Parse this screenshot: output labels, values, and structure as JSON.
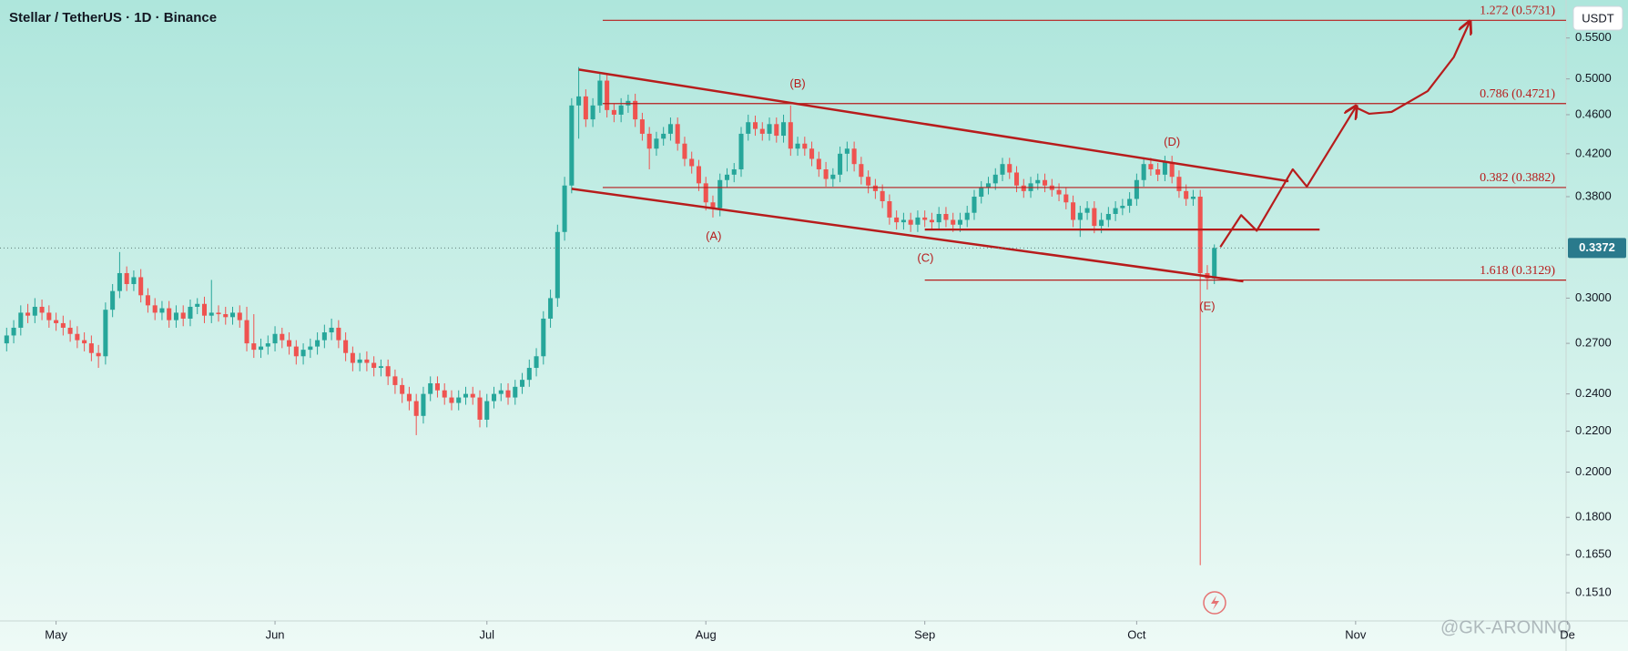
{
  "chart_data": {
    "type": "candlestick",
    "title": "Stellar / TetherUS · 1D · Binance",
    "currency": "USDT",
    "watermark": "@GK-ARONNO",
    "up_color": "#26a69a",
    "down_color": "#ef5350",
    "line_color": "#b71c1c",
    "log_scale": true,
    "xlim": [
      -0.94,
      220.8
    ],
    "xticks": [
      {
        "value": 7,
        "label": "May"
      },
      {
        "value": 38,
        "label": "Jun"
      },
      {
        "value": 68,
        "label": "Jul"
      },
      {
        "value": 99,
        "label": "Aug"
      },
      {
        "value": 130,
        "label": "Sep"
      },
      {
        "value": 160,
        "label": "Oct"
      },
      {
        "value": 191,
        "label": "Nov"
      },
      {
        "value": 221,
        "label": "De"
      }
    ],
    "ylim": [
      0.1414,
      0.6009
    ],
    "yticks": [
      {
        "value": 0.151,
        "label": "0.1510"
      },
      {
        "value": 0.165,
        "label": "0.1650"
      },
      {
        "value": 0.18,
        "label": "0.1800"
      },
      {
        "value": 0.2,
        "label": "0.2000"
      },
      {
        "value": 0.22,
        "label": "0.2200"
      },
      {
        "value": 0.24,
        "label": "0.2400"
      },
      {
        "value": 0.27,
        "label": "0.2700"
      },
      {
        "value": 0.3,
        "label": "0.3000"
      },
      {
        "value": 0.38,
        "label": "0.3800"
      },
      {
        "value": 0.42,
        "label": "0.4200"
      },
      {
        "value": 0.46,
        "label": "0.4600"
      },
      {
        "value": 0.5,
        "label": "0.5000"
      },
      {
        "value": 0.55,
        "label": "0.5500"
      }
    ],
    "open": [
      0.27,
      0.275,
      0.28,
      0.29,
      0.288,
      0.294,
      0.29,
      0.285,
      0.283,
      0.28,
      0.276,
      0.272,
      0.27,
      0.264,
      0.262,
      0.292,
      0.305,
      0.318,
      0.31,
      0.315,
      0.302,
      0.295,
      0.29,
      0.293,
      0.285,
      0.29,
      0.286,
      0.294,
      0.296,
      0.288,
      0.29,
      0.289,
      0.287,
      0.29,
      0.285,
      0.27,
      0.266,
      0.268,
      0.27,
      0.276,
      0.272,
      0.268,
      0.262,
      0.266,
      0.268,
      0.272,
      0.277,
      0.28,
      0.272,
      0.264,
      0.258,
      0.26,
      0.258,
      0.255,
      0.256,
      0.25,
      0.245,
      0.24,
      0.236,
      0.228,
      0.24,
      0.246,
      0.242,
      0.238,
      0.235,
      0.238,
      0.24,
      0.238,
      0.226,
      0.236,
      0.24,
      0.242,
      0.238,
      0.244,
      0.248,
      0.255,
      0.262,
      0.286,
      0.3,
      0.35,
      0.39,
      0.47,
      0.48,
      0.455,
      0.47,
      0.498,
      0.465,
      0.46,
      0.47,
      0.475,
      0.455,
      0.44,
      0.425,
      0.435,
      0.44,
      0.45,
      0.43,
      0.415,
      0.408,
      0.392,
      0.375,
      0.37,
      0.395,
      0.4,
      0.405,
      0.44,
      0.452,
      0.445,
      0.44,
      0.45,
      0.438,
      0.452,
      0.425,
      0.43,
      0.425,
      0.415,
      0.405,
      0.396,
      0.4,
      0.42,
      0.425,
      0.41,
      0.398,
      0.39,
      0.385,
      0.376,
      0.362,
      0.358,
      0.36,
      0.356,
      0.362,
      0.36,
      0.358,
      0.365,
      0.36,
      0.356,
      0.36,
      0.366,
      0.38,
      0.388,
      0.392,
      0.4,
      0.41,
      0.402,
      0.39,
      0.385,
      0.392,
      0.395,
      0.39,
      0.386,
      0.382,
      0.375,
      0.36,
      0.366,
      0.37,
      0.355,
      0.36,
      0.365,
      0.37,
      0.372,
      0.378,
      0.395,
      0.41,
      0.405,
      0.4,
      0.412,
      0.398,
      0.385,
      0.378,
      0.38,
      0.318,
      0.314
    ],
    "high": [
      0.28,
      0.285,
      0.295,
      0.296,
      0.3,
      0.299,
      0.295,
      0.29,
      0.288,
      0.285,
      0.281,
      0.277,
      0.275,
      0.269,
      0.297,
      0.31,
      0.334,
      0.323,
      0.32,
      0.321,
      0.307,
      0.3,
      0.298,
      0.298,
      0.295,
      0.295,
      0.299,
      0.3,
      0.301,
      0.313,
      0.295,
      0.294,
      0.294,
      0.295,
      0.294,
      0.289,
      0.273,
      0.275,
      0.281,
      0.28,
      0.277,
      0.272,
      0.27,
      0.273,
      0.277,
      0.282,
      0.286,
      0.285,
      0.277,
      0.268,
      0.264,
      0.265,
      0.262,
      0.26,
      0.26,
      0.254,
      0.249,
      0.244,
      0.24,
      0.244,
      0.25,
      0.25,
      0.246,
      0.242,
      0.242,
      0.244,
      0.244,
      0.242,
      0.24,
      0.244,
      0.246,
      0.246,
      0.248,
      0.252,
      0.26,
      0.267,
      0.291,
      0.306,
      0.356,
      0.398,
      0.478,
      0.514,
      0.488,
      0.478,
      0.508,
      0.505,
      0.472,
      0.478,
      0.482,
      0.483,
      0.462,
      0.447,
      0.442,
      0.447,
      0.457,
      0.457,
      0.437,
      0.422,
      0.414,
      0.398,
      0.381,
      0.401,
      0.406,
      0.411,
      0.447,
      0.46,
      0.459,
      0.452,
      0.457,
      0.457,
      0.46,
      0.47,
      0.437,
      0.437,
      0.432,
      0.422,
      0.412,
      0.406,
      0.427,
      0.432,
      0.432,
      0.417,
      0.404,
      0.396,
      0.391,
      0.382,
      0.368,
      0.366,
      0.366,
      0.368,
      0.368,
      0.366,
      0.371,
      0.371,
      0.366,
      0.366,
      0.372,
      0.386,
      0.394,
      0.398,
      0.406,
      0.416,
      0.416,
      0.408,
      0.396,
      0.398,
      0.401,
      0.401,
      0.396,
      0.392,
      0.388,
      0.381,
      0.372,
      0.376,
      0.376,
      0.366,
      0.371,
      0.376,
      0.378,
      0.384,
      0.401,
      0.416,
      0.416,
      0.411,
      0.418,
      0.418,
      0.404,
      0.391,
      0.386,
      0.386,
      0.324,
      0.34
    ],
    "low": [
      0.265,
      0.27,
      0.275,
      0.283,
      0.283,
      0.285,
      0.28,
      0.278,
      0.275,
      0.271,
      0.267,
      0.265,
      0.259,
      0.255,
      0.257,
      0.287,
      0.3,
      0.305,
      0.305,
      0.297,
      0.29,
      0.285,
      0.285,
      0.28,
      0.28,
      0.281,
      0.281,
      0.289,
      0.283,
      0.283,
      0.284,
      0.282,
      0.282,
      0.28,
      0.265,
      0.261,
      0.261,
      0.263,
      0.265,
      0.267,
      0.263,
      0.257,
      0.257,
      0.261,
      0.263,
      0.267,
      0.272,
      0.267,
      0.259,
      0.253,
      0.253,
      0.253,
      0.25,
      0.25,
      0.245,
      0.24,
      0.235,
      0.231,
      0.218,
      0.224,
      0.236,
      0.238,
      0.234,
      0.231,
      0.231,
      0.234,
      0.234,
      0.222,
      0.222,
      0.232,
      0.236,
      0.234,
      0.234,
      0.24,
      0.244,
      0.25,
      0.257,
      0.28,
      0.294,
      0.343,
      0.383,
      0.435,
      0.447,
      0.447,
      0.462,
      0.457,
      0.452,
      0.452,
      0.462,
      0.447,
      0.433,
      0.405,
      0.418,
      0.428,
      0.433,
      0.423,
      0.408,
      0.401,
      0.385,
      0.368,
      0.362,
      0.363,
      0.388,
      0.393,
      0.398,
      0.433,
      0.438,
      0.433,
      0.433,
      0.431,
      0.431,
      0.418,
      0.418,
      0.418,
      0.408,
      0.398,
      0.389,
      0.389,
      0.393,
      0.403,
      0.403,
      0.391,
      0.383,
      0.378,
      0.37,
      0.356,
      0.352,
      0.352,
      0.35,
      0.35,
      0.354,
      0.352,
      0.352,
      0.354,
      0.35,
      0.35,
      0.354,
      0.36,
      0.374,
      0.382,
      0.386,
      0.394,
      0.396,
      0.384,
      0.379,
      0.379,
      0.386,
      0.384,
      0.38,
      0.376,
      0.369,
      0.354,
      0.346,
      0.36,
      0.349,
      0.349,
      0.354,
      0.359,
      0.364,
      0.366,
      0.372,
      0.389,
      0.399,
      0.394,
      0.394,
      0.392,
      0.379,
      0.372,
      0.372,
      0.161,
      0.306,
      0.31
    ],
    "close": [
      0.275,
      0.28,
      0.29,
      0.288,
      0.294,
      0.29,
      0.285,
      0.283,
      0.28,
      0.276,
      0.272,
      0.27,
      0.264,
      0.262,
      0.292,
      0.305,
      0.318,
      0.31,
      0.315,
      0.302,
      0.295,
      0.29,
      0.293,
      0.285,
      0.29,
      0.286,
      0.294,
      0.296,
      0.288,
      0.29,
      0.289,
      0.287,
      0.29,
      0.285,
      0.27,
      0.266,
      0.268,
      0.27,
      0.276,
      0.272,
      0.268,
      0.262,
      0.266,
      0.268,
      0.272,
      0.277,
      0.28,
      0.272,
      0.264,
      0.258,
      0.26,
      0.258,
      0.255,
      0.256,
      0.25,
      0.245,
      0.24,
      0.236,
      0.228,
      0.24,
      0.246,
      0.242,
      0.238,
      0.235,
      0.238,
      0.24,
      0.238,
      0.226,
      0.236,
      0.24,
      0.242,
      0.238,
      0.244,
      0.248,
      0.255,
      0.262,
      0.286,
      0.3,
      0.35,
      0.39,
      0.47,
      0.48,
      0.455,
      0.47,
      0.498,
      0.465,
      0.46,
      0.47,
      0.475,
      0.455,
      0.44,
      0.425,
      0.435,
      0.44,
      0.45,
      0.43,
      0.415,
      0.408,
      0.392,
      0.375,
      0.37,
      0.395,
      0.4,
      0.405,
      0.44,
      0.452,
      0.445,
      0.44,
      0.45,
      0.438,
      0.452,
      0.425,
      0.43,
      0.425,
      0.415,
      0.405,
      0.396,
      0.4,
      0.42,
      0.425,
      0.41,
      0.398,
      0.39,
      0.385,
      0.376,
      0.362,
      0.358,
      0.36,
      0.356,
      0.362,
      0.36,
      0.358,
      0.365,
      0.36,
      0.356,
      0.36,
      0.366,
      0.38,
      0.388,
      0.392,
      0.4,
      0.41,
      0.402,
      0.39,
      0.385,
      0.392,
      0.395,
      0.39,
      0.386,
      0.382,
      0.375,
      0.36,
      0.366,
      0.37,
      0.355,
      0.36,
      0.365,
      0.37,
      0.372,
      0.378,
      0.395,
      0.41,
      0.405,
      0.4,
      0.412,
      0.398,
      0.385,
      0.378,
      0.38,
      0.318,
      0.314,
      0.3372
    ],
    "levels": [
      {
        "label": "1.272 (0.5731)",
        "value": 0.5731,
        "x_start": 84.4
      },
      {
        "label": "0.786 (0.4721)",
        "value": 0.4721,
        "x_start": 84.4
      },
      {
        "label": "0.382 (0.3882)",
        "value": 0.3882,
        "x_start": 84.4
      },
      {
        "label": "1.618 (0.3129)",
        "value": 0.3129,
        "x_start": 130
      }
    ],
    "support": {
      "value": 0.352,
      "x": [
        130,
        185.9
      ]
    },
    "trendlines": [
      {
        "x": [
          81,
          181.5
        ],
        "y": [
          0.511,
          0.394
        ]
      },
      {
        "x": [
          80,
          175.1
        ],
        "y": [
          0.387,
          0.312
        ]
      }
    ],
    "projections": [
      {
        "x": [
          171.85,
          174.8,
          177.0,
          182.1,
          184.1,
          191.0
        ],
        "y": [
          0.338,
          0.364,
          0.351,
          0.405,
          0.389,
          0.468
        ]
      },
      {
        "x": [
          191.0,
          192.9,
          196.1,
          201.2,
          204.9,
          207.1
        ],
        "y": [
          0.468,
          0.461,
          0.463,
          0.486,
          0.526,
          0.57
        ]
      }
    ],
    "waves": [
      {
        "label": "(A)",
        "x": 100.1,
        "y": 0.346
      },
      {
        "label": "(B)",
        "x": 112,
        "y": 0.494
      },
      {
        "label": "(C)",
        "x": 130.1,
        "y": 0.329
      },
      {
        "label": "(D)",
        "x": 165,
        "y": 0.431
      },
      {
        "label": "(E)",
        "x": 170,
        "y": 0.294
      }
    ]
  }
}
